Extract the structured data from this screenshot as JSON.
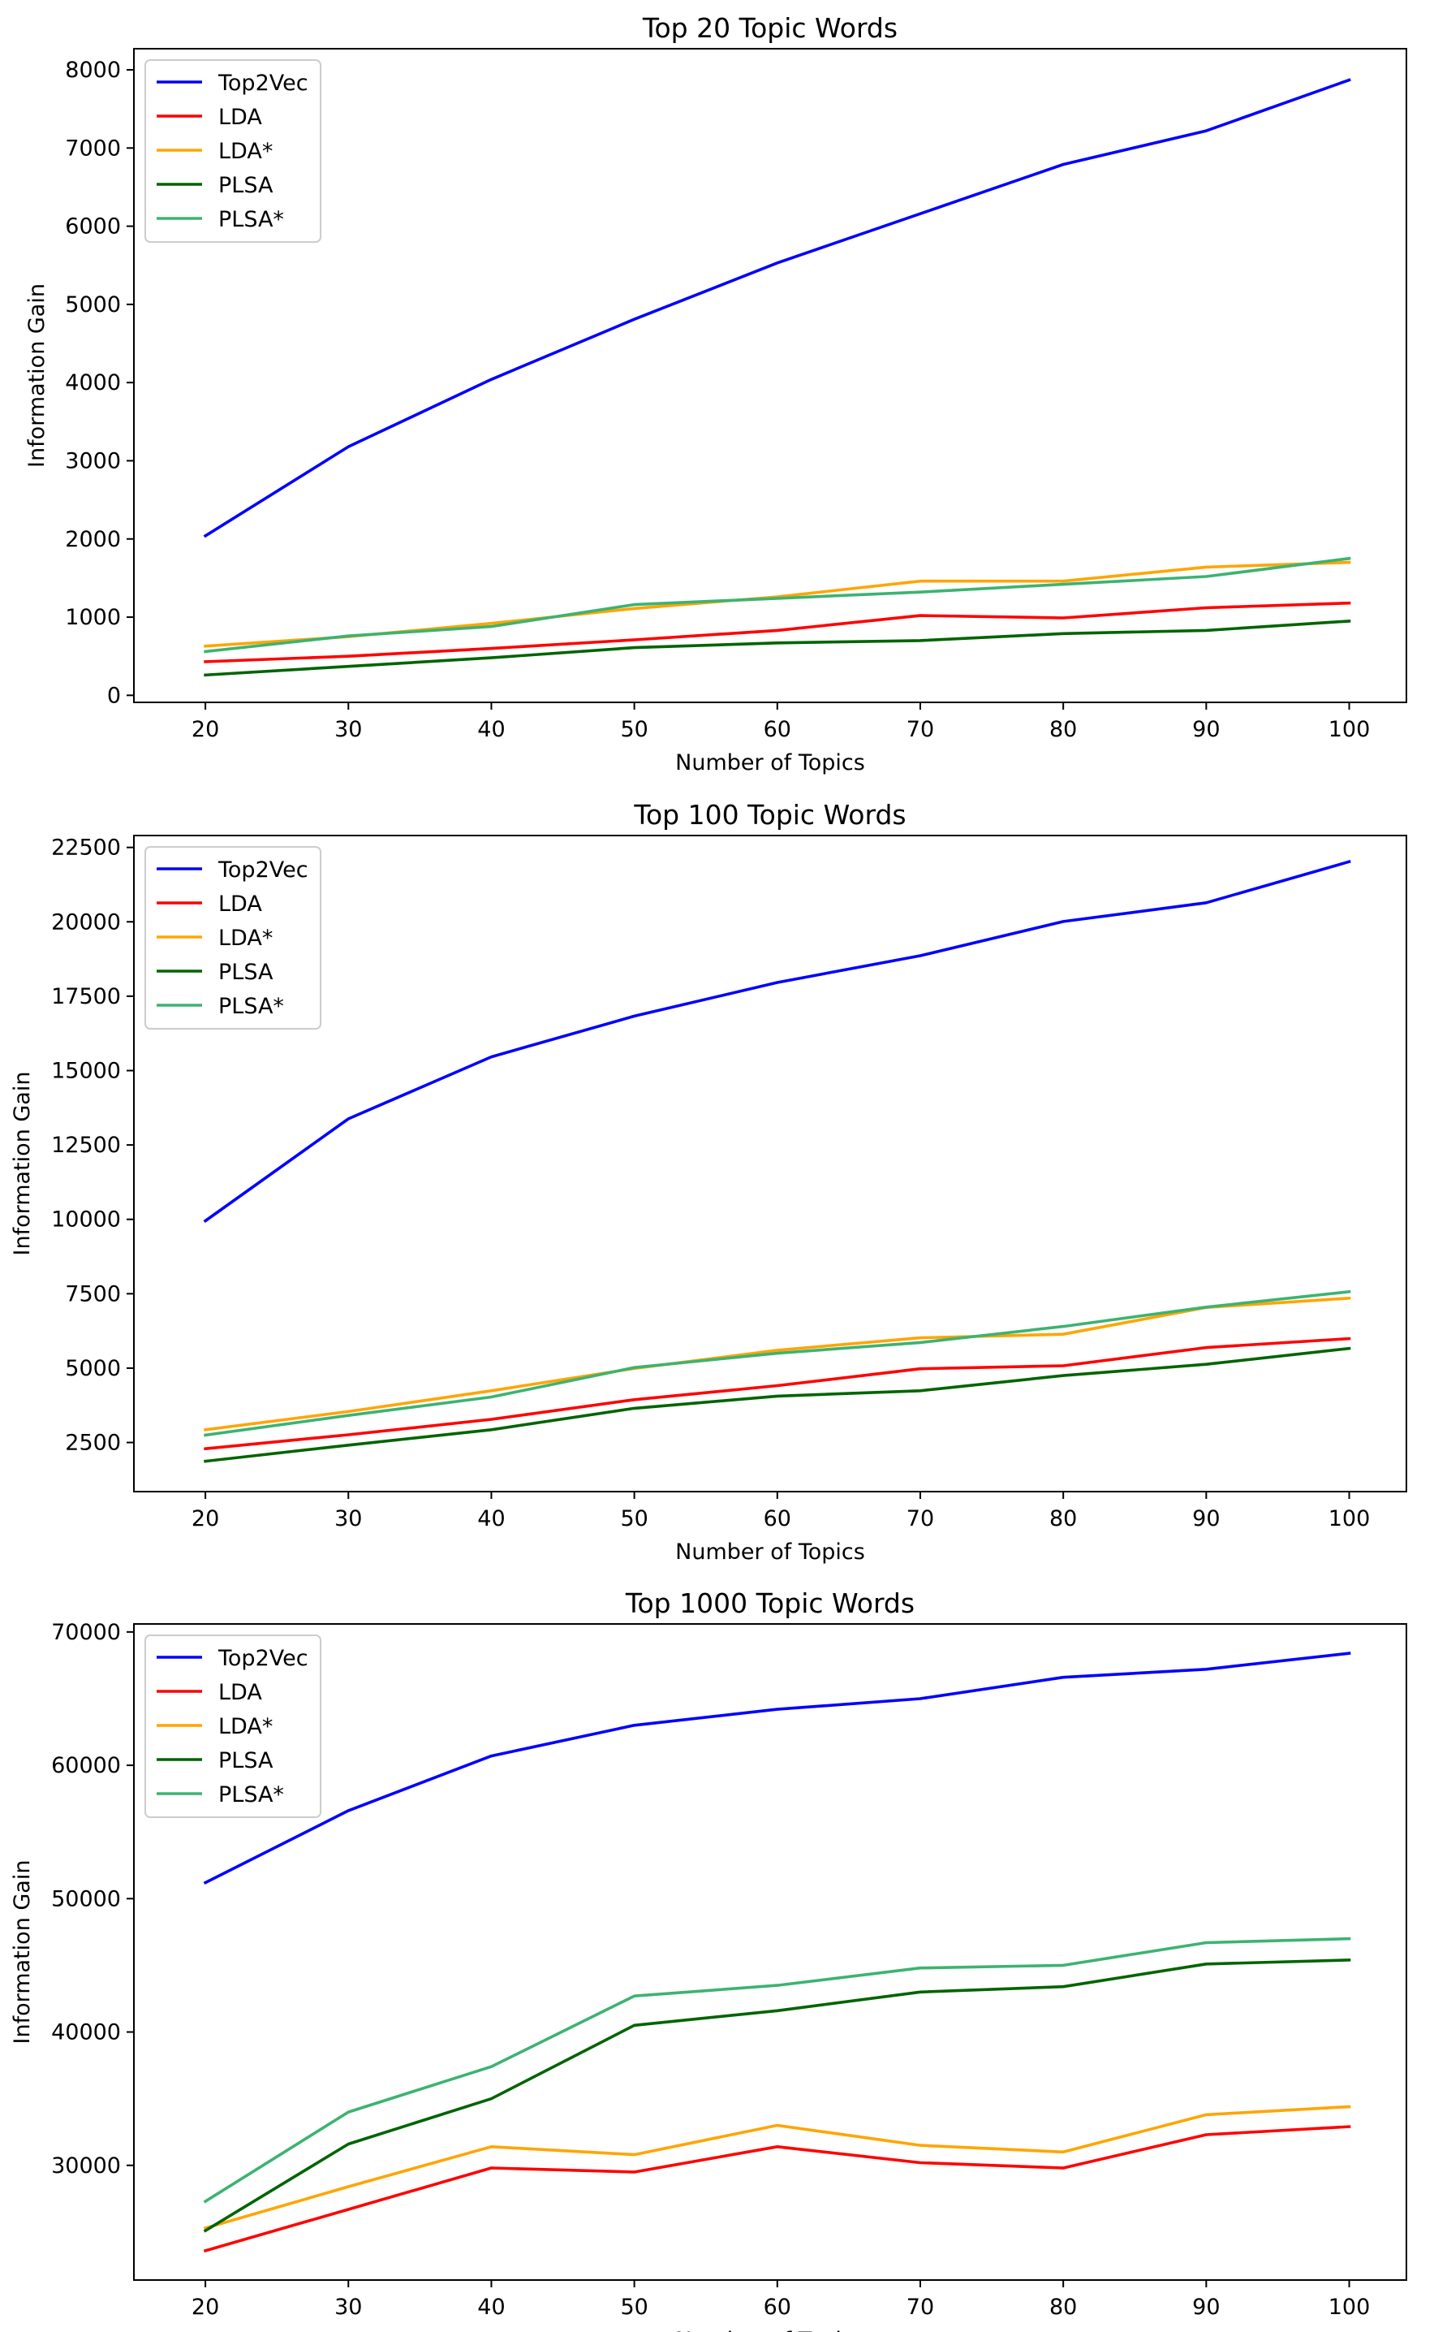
{
  "chart_data": [
    {
      "type": "line",
      "title": "Top 20 Topic Words",
      "xlabel": "Number of Topics",
      "ylabel": "Information Gain",
      "x": [
        20,
        30,
        40,
        50,
        60,
        70,
        80,
        90,
        100
      ],
      "xticks": [
        20,
        30,
        40,
        50,
        60,
        70,
        80,
        90,
        100
      ],
      "xlim": [
        15,
        104
      ],
      "ylim": [
        -90,
        8270
      ],
      "yticks": [
        0,
        1000,
        2000,
        3000,
        4000,
        5000,
        6000,
        7000,
        8000
      ],
      "ytick_labels": [
        "0",
        "1000",
        "2000",
        "3000",
        "4000",
        "5000",
        "6000",
        "7000",
        "8000"
      ],
      "grid": false,
      "legend_position": "upper-left",
      "series": [
        {
          "name": "Top2Vec",
          "color": "#0000ff",
          "values": [
            2040,
            3180,
            4040,
            4810,
            5530,
            6160,
            6790,
            7220,
            7870
          ]
        },
        {
          "name": "LDA",
          "color": "#ff0000",
          "values": [
            430,
            500,
            600,
            710,
            830,
            1020,
            990,
            1120,
            1180
          ]
        },
        {
          "name": "LDA*",
          "color": "#ffa500",
          "values": [
            630,
            750,
            920,
            1110,
            1260,
            1460,
            1460,
            1640,
            1700
          ]
        },
        {
          "name": "PLSA",
          "color": "#006400",
          "values": [
            260,
            370,
            480,
            610,
            670,
            700,
            790,
            830,
            950
          ]
        },
        {
          "name": "PLSA*",
          "color": "#3cb371",
          "values": [
            560,
            760,
            880,
            1160,
            1240,
            1320,
            1420,
            1520,
            1750
          ]
        }
      ]
    },
    {
      "type": "line",
      "title": "Top 100 Topic Words",
      "xlabel": "Number of Topics",
      "ylabel": "Information Gain",
      "x": [
        20,
        30,
        40,
        50,
        60,
        70,
        80,
        90,
        100
      ],
      "xticks": [
        20,
        30,
        40,
        50,
        60,
        70,
        80,
        90,
        100
      ],
      "xlim": [
        15,
        104
      ],
      "ylim": [
        850,
        22900
      ],
      "yticks": [
        2500,
        5000,
        7500,
        10000,
        12500,
        15000,
        17500,
        20000,
        22500
      ],
      "ytick_labels": [
        "2500",
        "5000",
        "7500",
        "10000",
        "12500",
        "15000",
        "17500",
        "20000",
        "22500"
      ],
      "grid": false,
      "legend_position": "upper-left",
      "series": [
        {
          "name": "Top2Vec",
          "color": "#0000ff",
          "values": [
            9950,
            13380,
            15460,
            16830,
            17960,
            18860,
            20010,
            20640,
            22020
          ]
        },
        {
          "name": "LDA",
          "color": "#ff0000",
          "values": [
            2290,
            2760,
            3280,
            3940,
            4410,
            4980,
            5080,
            5690,
            5990
          ]
        },
        {
          "name": "LDA*",
          "color": "#ffa500",
          "values": [
            2930,
            3540,
            4240,
            4990,
            5600,
            6020,
            6140,
            7040,
            7350
          ]
        },
        {
          "name": "PLSA",
          "color": "#006400",
          "values": [
            1870,
            2410,
            2930,
            3650,
            4060,
            4240,
            4750,
            5130,
            5660
          ]
        },
        {
          "name": "PLSA*",
          "color": "#3cb371",
          "values": [
            2750,
            3410,
            4030,
            5020,
            5500,
            5860,
            6400,
            7050,
            7570
          ]
        }
      ]
    },
    {
      "type": "line",
      "title": "Top 1000 Topic Words",
      "xlabel": "Number of Topics",
      "ylabel": "Information Gain",
      "x": [
        20,
        30,
        40,
        50,
        60,
        70,
        80,
        90,
        100
      ],
      "xticks": [
        20,
        30,
        40,
        50,
        60,
        70,
        80,
        90,
        100
      ],
      "xlim": [
        15,
        104
      ],
      "ylim": [
        21400,
        70600
      ],
      "yticks": [
        30000,
        40000,
        50000,
        60000,
        70000
      ],
      "ytick_labels": [
        "30000",
        "40000",
        "50000",
        "60000",
        "70000"
      ],
      "grid": false,
      "legend_position": "upper-left",
      "series": [
        {
          "name": "Top2Vec",
          "color": "#0000ff",
          "values": [
            51200,
            56600,
            60700,
            63000,
            64200,
            65000,
            66600,
            67200,
            68400
          ]
        },
        {
          "name": "LDA",
          "color": "#ff0000",
          "values": [
            23600,
            26700,
            29800,
            29500,
            31400,
            30200,
            29800,
            32300,
            32900
          ]
        },
        {
          "name": "LDA*",
          "color": "#ffa500",
          "values": [
            25300,
            28400,
            31400,
            30800,
            33000,
            31500,
            31000,
            33800,
            34400
          ]
        },
        {
          "name": "PLSA",
          "color": "#006400",
          "values": [
            25100,
            31600,
            35000,
            40500,
            41600,
            43000,
            43400,
            45100,
            45400
          ]
        },
        {
          "name": "PLSA*",
          "color": "#3cb371",
          "values": [
            27300,
            34000,
            37400,
            42700,
            43500,
            44800,
            45000,
            46700,
            47000
          ]
        }
      ]
    }
  ]
}
